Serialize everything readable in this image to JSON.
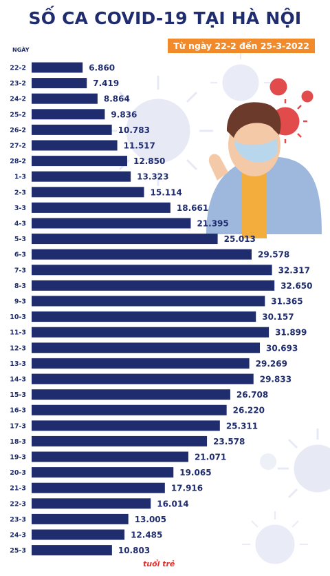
{
  "header": {
    "title": "SỐ CA COVID-19 TẠI HÀ NỘI",
    "date_range": "Từ ngày 22-2 đến 25-3-2022",
    "axis_label": "NGÀY"
  },
  "logo_text": "tuổi trẻ",
  "colors": {
    "bar": "#1f2d6e",
    "text": "#1f2d6e",
    "accent": "#f08a2b"
  },
  "chart_data": {
    "type": "bar",
    "orientation": "horizontal",
    "title": "SỐ CA COVID-19 TẠI HÀ NỘI",
    "subtitle": "Từ ngày 22-2 đến 25-3-2022",
    "ylabel": "NGÀY",
    "xlim": [
      0,
      33000
    ],
    "categories": [
      "22-2",
      "23-2",
      "24-2",
      "25-2",
      "26-2",
      "27-2",
      "28-2",
      "1-3",
      "2-3",
      "3-3",
      "4-3",
      "5-3",
      "6-3",
      "7-3",
      "8-3",
      "9-3",
      "10-3",
      "11-3",
      "12-3",
      "13-3",
      "14-3",
      "15-3",
      "16-3",
      "17-3",
      "18-3",
      "19-3",
      "20-3",
      "21-3",
      "22-3",
      "23-3",
      "24-3",
      "25-3"
    ],
    "values": [
      6860,
      7419,
      8864,
      9836,
      10783,
      11517,
      12850,
      13323,
      15114,
      18661,
      21395,
      25013,
      29578,
      32317,
      32650,
      31365,
      30157,
      31899,
      30693,
      29269,
      29833,
      26708,
      26220,
      25311,
      23578,
      21071,
      19065,
      17916,
      16014,
      13005,
      12485,
      10803
    ],
    "value_labels": [
      "6.860",
      "7.419",
      "8.864",
      "9.836",
      "10.783",
      "11.517",
      "12.850",
      "13.323",
      "15.114",
      "18.661",
      "21.395",
      "25.013",
      "29.578",
      "32.317",
      "32.650",
      "31.365",
      "30.157",
      "31.899",
      "30.693",
      "29.269",
      "29.833",
      "26.708",
      "26.220",
      "25.311",
      "23.578",
      "21.071",
      "19.065",
      "17.916",
      "16.014",
      "13.005",
      "12.485",
      "10.803"
    ]
  }
}
